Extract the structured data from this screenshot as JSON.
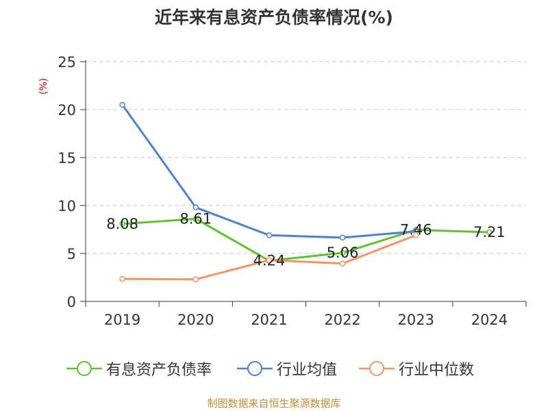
{
  "chart_data": {
    "type": "line",
    "title": "近年来有息资产负债率情况(%)",
    "ylabel": "(%)",
    "xlabel": "",
    "ylim": [
      0,
      25
    ],
    "yticks": [
      0,
      5,
      10,
      15,
      20,
      25
    ],
    "categories": [
      "2019",
      "2020",
      "2021",
      "2022",
      "2023",
      "2024"
    ],
    "grid": true,
    "legend_position": "bottom",
    "series": [
      {
        "name": "有息资产负债率",
        "color": "#5cc22e",
        "values": [
          8.08,
          8.61,
          4.24,
          5.06,
          7.46,
          7.21
        ],
        "labels": [
          "8.08",
          "8.61",
          "4.24",
          "5.06",
          "7.46",
          "7.21"
        ]
      },
      {
        "name": "行业均值",
        "color": "#4d7fd6",
        "values": [
          20.5,
          9.8,
          6.9,
          6.65,
          7.3,
          null
        ]
      },
      {
        "name": "行业中位数",
        "color": "#f59461",
        "values": [
          2.35,
          2.3,
          4.3,
          3.95,
          6.9,
          null
        ]
      }
    ],
    "source": "制图数据来自恒生聚源数据库"
  }
}
